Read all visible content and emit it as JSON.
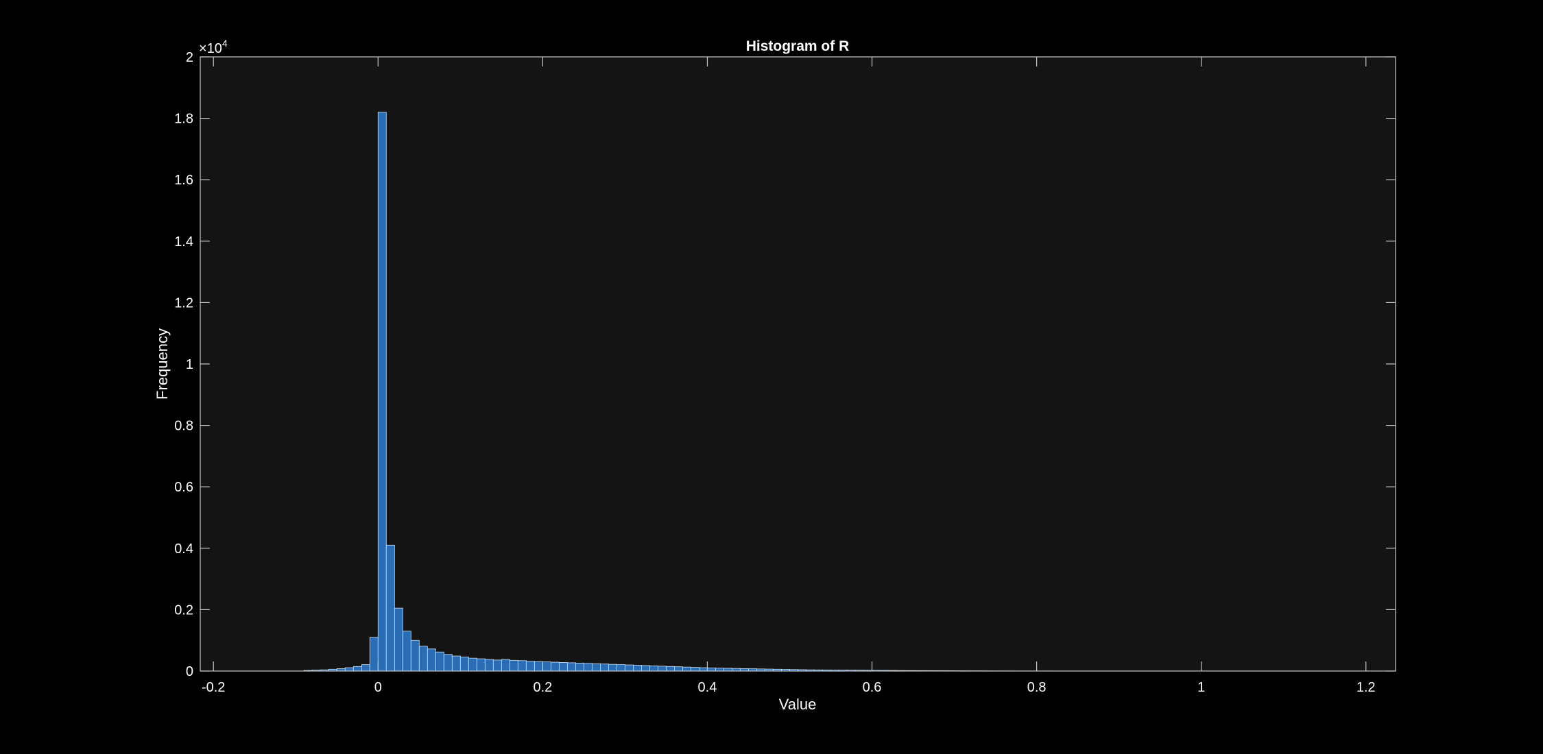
{
  "chart_data": {
    "type": "bar",
    "title": "Histogram of R",
    "xlabel": "Value",
    "ylabel": "Frequency",
    "exponent_label": {
      "base": "×10",
      "power": "4"
    },
    "xlim": [
      -0.216,
      1.236
    ],
    "ylim": [
      0,
      20000
    ],
    "xticks": [
      -0.2,
      0,
      0.2,
      0.4,
      0.6,
      0.8,
      1,
      1.2
    ],
    "xtick_labels": [
      "-0.2",
      "0",
      "0.2",
      "0.4",
      "0.6",
      "0.8",
      "1",
      "1.2"
    ],
    "yticks": [
      0,
      2000,
      4000,
      6000,
      8000,
      10000,
      12000,
      14000,
      16000,
      18000,
      20000
    ],
    "ytick_labels": [
      "0",
      "0.2",
      "0.4",
      "0.6",
      "0.8",
      "1",
      "1.2",
      "1.4",
      "1.6",
      "1.8",
      "2"
    ],
    "grid": false,
    "colors": {
      "background": "#000000",
      "axes_background": "#141414",
      "axes": "#c8c8c8",
      "bar_fill": "#2a6db5",
      "bar_edge": "#cfe0f2"
    },
    "bin_width": 0.01,
    "bin_start": -0.09,
    "values": [
      20,
      30,
      40,
      60,
      80,
      110,
      150,
      210,
      1100,
      18200,
      4100,
      2050,
      1300,
      1000,
      810,
      720,
      620,
      540,
      490,
      460,
      420,
      400,
      380,
      360,
      380,
      350,
      340,
      320,
      310,
      300,
      290,
      280,
      270,
      260,
      250,
      240,
      230,
      220,
      210,
      200,
      190,
      180,
      170,
      160,
      150,
      140,
      130,
      120,
      110,
      100,
      95,
      90,
      85,
      80,
      75,
      70,
      65,
      60,
      55,
      50,
      45,
      40,
      38,
      36,
      34,
      32,
      30,
      28,
      26,
      24,
      22,
      20,
      18,
      16,
      15,
      14,
      13,
      12,
      11,
      10,
      9,
      8,
      7,
      6,
      5,
      5,
      4,
      4,
      3,
      3,
      3,
      2,
      2,
      2,
      2,
      1,
      1,
      1
    ]
  }
}
